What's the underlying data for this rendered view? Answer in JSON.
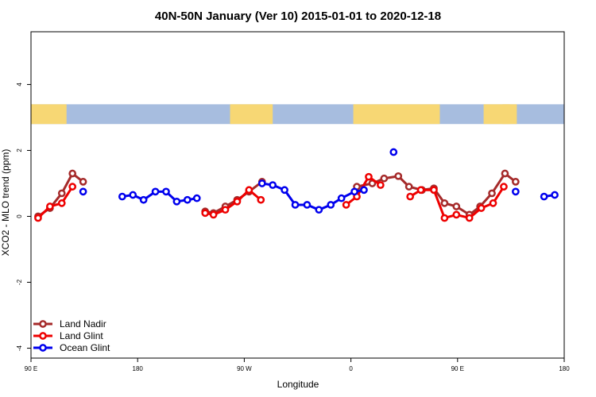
{
  "chart_data": {
    "type": "line",
    "title": "40N-50N January (Ver 10)   2015-01-01 to 2020-12-18",
    "xlabel": "Longitude",
    "ylabel": "XCO2 - MLO trend (ppm)",
    "xlim": [
      90,
      540
    ],
    "ylim": [
      -4.3,
      5.6
    ],
    "x_ticks": [
      {
        "value": 90,
        "label": "90 E"
      },
      {
        "value": 180,
        "label": "180"
      },
      {
        "value": 270,
        "label": "90 W"
      },
      {
        "value": 360,
        "label": "0"
      },
      {
        "value": 450,
        "label": "90 E"
      },
      {
        "value": 540,
        "label": "180"
      }
    ],
    "y_ticks": [
      {
        "value": -4,
        "label": "-4"
      },
      {
        "value": -2,
        "label": "-2"
      },
      {
        "value": 0,
        "label": "0"
      },
      {
        "value": 2,
        "label": "2"
      },
      {
        "value": 4,
        "label": "4"
      }
    ],
    "map_band": {
      "y_range": [
        2.8,
        3.4
      ],
      "land_color": "#f7d774",
      "ocean_color": "#a7bddf"
    },
    "legend_position": "bottom-left",
    "series": [
      {
        "name": "Land Nadir",
        "color": "#a52a2a",
        "segments": [
          [
            [
              96,
              0.0
            ],
            [
              106,
              0.25
            ],
            [
              116,
              0.7
            ],
            [
              125,
              1.3
            ],
            [
              134,
              1.05
            ]
          ],
          [
            [
              237,
              0.15
            ],
            [
              244,
              0.1
            ],
            [
              254,
              0.3
            ],
            [
              264,
              0.5
            ],
            [
              274,
              0.75
            ],
            [
              285,
              1.05
            ]
          ],
          [
            [
              365,
              0.9
            ],
            [
              378,
              1.0
            ],
            [
              388,
              1.15
            ],
            [
              400,
              1.22
            ],
            [
              409,
              0.9
            ],
            [
              420,
              0.8
            ],
            [
              430,
              0.85
            ],
            [
              439,
              0.4
            ],
            [
              449,
              0.3
            ],
            [
              460,
              0.05
            ],
            [
              469,
              0.3
            ],
            [
              479,
              0.7
            ],
            [
              490,
              1.3
            ],
            [
              499,
              1.05
            ]
          ]
        ]
      },
      {
        "name": "Land Glint",
        "color": "#ee0000",
        "segments": [
          [
            [
              96,
              -0.05
            ],
            [
              106,
              0.3
            ],
            [
              116,
              0.4
            ],
            [
              125,
              0.9
            ]
          ],
          [
            [
              237,
              0.1
            ],
            [
              244,
              0.05
            ],
            [
              254,
              0.2
            ],
            [
              264,
              0.45
            ],
            [
              274,
              0.8
            ],
            [
              284,
              0.5
            ]
          ],
          [
            [
              356,
              0.35
            ],
            [
              365,
              0.6
            ],
            [
              375,
              1.2
            ],
            [
              385,
              0.95
            ]
          ],
          [
            [
              410,
              0.6
            ],
            [
              419,
              0.8
            ],
            [
              430,
              0.8
            ],
            [
              439,
              -0.05
            ],
            [
              449,
              0.05
            ],
            [
              460,
              -0.05
            ],
            [
              470,
              0.25
            ],
            [
              480,
              0.4
            ],
            [
              489,
              0.9
            ]
          ]
        ]
      },
      {
        "name": "Ocean Glint",
        "color": "#0000ee",
        "segments": [
          [
            [
              134,
              0.75
            ]
          ],
          [
            [
              167,
              0.6
            ],
            [
              176,
              0.65
            ],
            [
              185,
              0.5
            ],
            [
              195,
              0.75
            ],
            [
              204,
              0.75
            ],
            [
              213,
              0.45
            ],
            [
              222,
              0.5
            ],
            [
              230,
              0.55
            ]
          ],
          [
            [
              285,
              1.0
            ],
            [
              294,
              0.95
            ],
            [
              304,
              0.8
            ],
            [
              313,
              0.35
            ],
            [
              323,
              0.35
            ],
            [
              333,
              0.2
            ],
            [
              343,
              0.35
            ],
            [
              352,
              0.55
            ],
            [
              363,
              0.75
            ],
            [
              371,
              0.8
            ]
          ],
          [
            [
              396,
              1.95
            ]
          ],
          [
            [
              499,
              0.75
            ]
          ],
          [
            [
              523,
              0.6
            ],
            [
              532,
              0.65
            ]
          ]
        ]
      }
    ]
  }
}
